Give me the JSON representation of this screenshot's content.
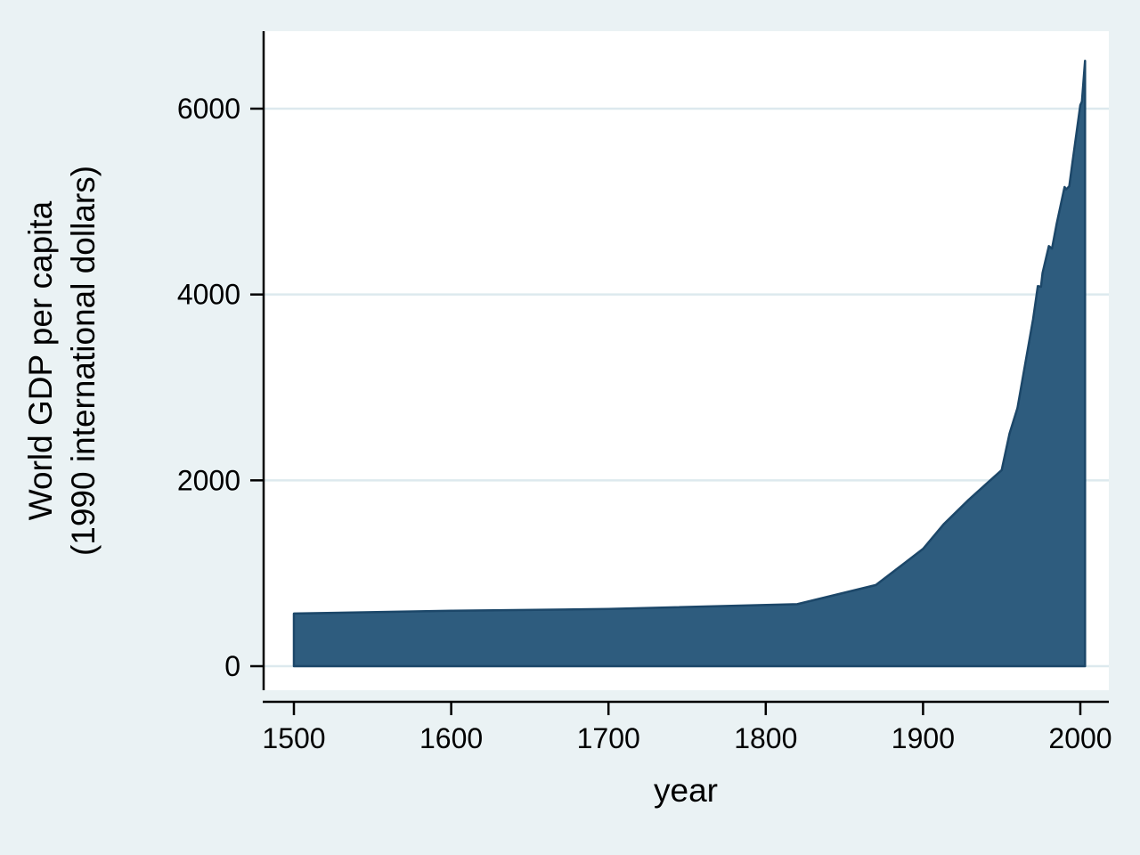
{
  "figure": {
    "background": "#eaf2f4",
    "plot_background": "#ffffff",
    "grid_color": "#dde9ee",
    "axis_color": "#000000",
    "text_color": "#000000",
    "area_fill": "#2e5c7e",
    "area_stroke": "#1c4769"
  },
  "chart_data": {
    "type": "area",
    "title": "",
    "xlabel": "year",
    "ylabel_lines": [
      "World GDP per capita",
      "(1990 international dollars)"
    ],
    "legend": "none",
    "grid": "horizontal",
    "xlim": [
      1500,
      2003
    ],
    "ylim": [
      0,
      6600
    ],
    "xticks": [
      1500,
      1600,
      1700,
      1800,
      1900,
      2000
    ],
    "yticks": [
      0,
      2000,
      4000,
      6000
    ],
    "x": [
      1500,
      1600,
      1700,
      1820,
      1870,
      1900,
      1913,
      1929,
      1940,
      1950,
      1955,
      1960,
      1965,
      1970,
      1973,
      1975,
      1976,
      1980,
      1982,
      1985,
      1990,
      1991,
      1993,
      1995,
      2000,
      2001,
      2003
    ],
    "values": [
      566,
      596,
      615,
      667,
      873,
      1262,
      1526,
      1790,
      1958,
      2111,
      2503,
      2777,
      3258,
      3736,
      4091,
      4083,
      4233,
      4521,
      4494,
      4764,
      5157,
      5132,
      5165,
      5423,
      6038,
      6077,
      6516
    ],
    "series_name": "World GDP per capita (1990 international dollars)"
  }
}
